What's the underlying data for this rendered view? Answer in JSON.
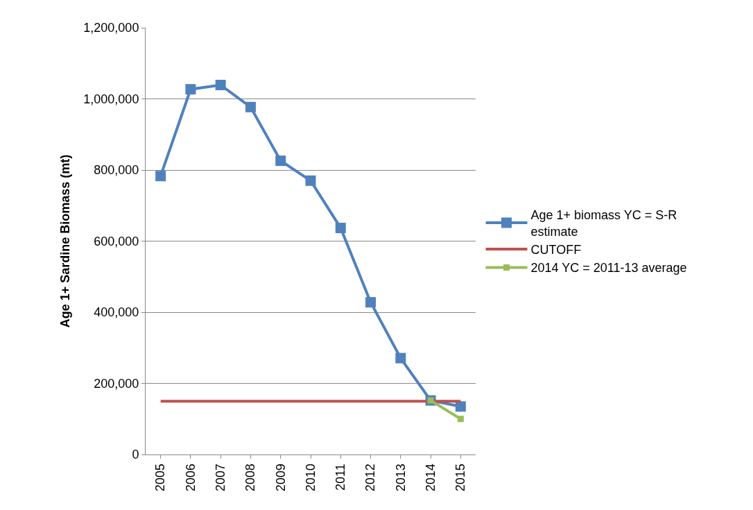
{
  "chart_data": {
    "type": "line",
    "ylabel": "Age 1+ Sardine Biomass (mt)",
    "categories": [
      "2005",
      "2006",
      "2007",
      "2008",
      "2009",
      "2010",
      "2011",
      "2012",
      "2013",
      "2014",
      "2015"
    ],
    "series": [
      {
        "name": "Age 1+ biomass YC = S-R estimate",
        "color": "#4f81bd",
        "marker": "square",
        "values": [
          783000,
          1027000,
          1039000,
          977000,
          826000,
          770000,
          637000,
          428000,
          271000,
          152000,
          135000
        ]
      },
      {
        "name": "CUTOFF",
        "color": "#c0504d",
        "marker": "none",
        "values": [
          150000,
          150000,
          150000,
          150000,
          150000,
          150000,
          150000,
          150000,
          150000,
          150000,
          150000
        ]
      },
      {
        "name": "2014 YC = 2011-13 average",
        "color": "#9bbb59",
        "marker": "square",
        "values": [
          null,
          null,
          null,
          null,
          null,
          null,
          null,
          null,
          null,
          152000,
          100000
        ]
      }
    ],
    "ylim": [
      0,
      1200000
    ],
    "yticks": [
      {
        "value": 0,
        "label": "0"
      },
      {
        "value": 200000,
        "label": "200,000"
      },
      {
        "value": 400000,
        "label": "400,000"
      },
      {
        "value": 600000,
        "label": "600,000"
      },
      {
        "value": 800000,
        "label": "800,000"
      },
      {
        "value": 1000000,
        "label": "1,000,000"
      },
      {
        "value": 1200000,
        "label": "1,200,000"
      }
    ],
    "grid": "y",
    "legend": "right"
  }
}
